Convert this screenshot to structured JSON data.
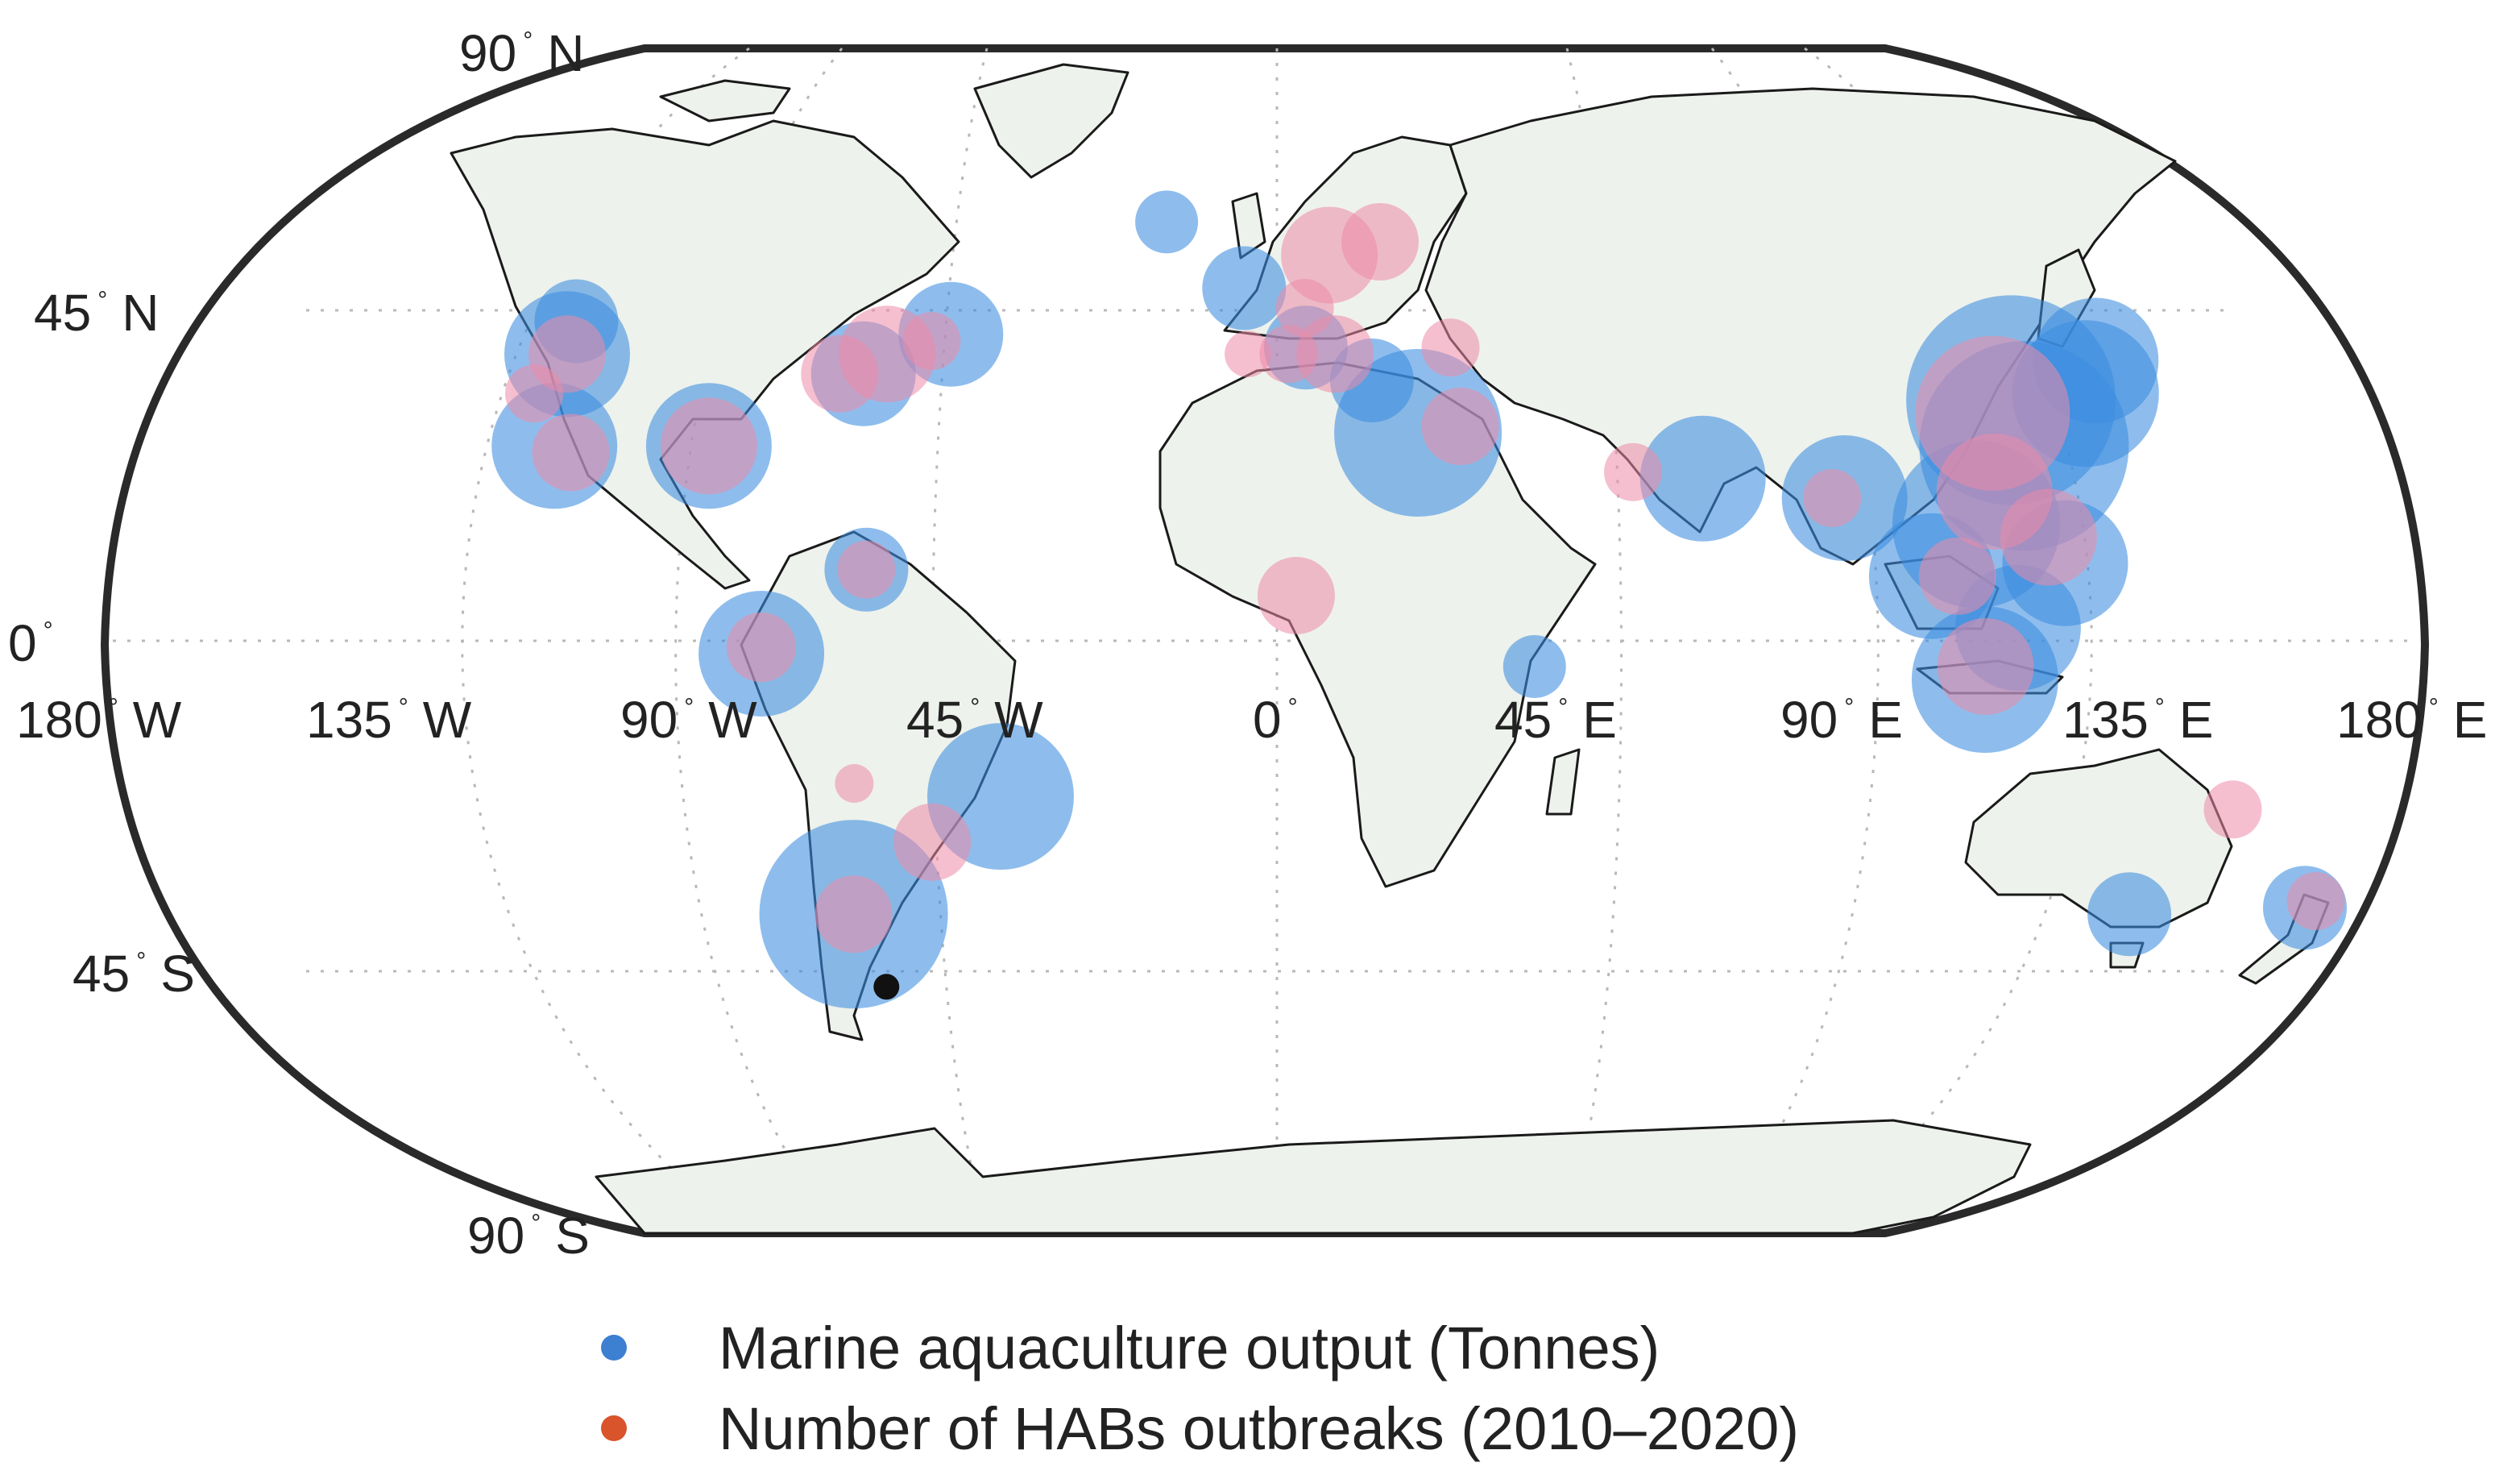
{
  "map": {
    "projection": "Robinson",
    "gridlines": true,
    "lat_labels": [
      {
        "deg": "90",
        "hemi": "N"
      },
      {
        "deg": "45",
        "hemi": "N"
      },
      {
        "deg": "0",
        "hemi": ""
      },
      {
        "deg": "45",
        "hemi": "S"
      },
      {
        "deg": "90",
        "hemi": "S"
      }
    ],
    "lon_labels": [
      {
        "deg": "180",
        "hemi": "W"
      },
      {
        "deg": "135",
        "hemi": "W"
      },
      {
        "deg": "90",
        "hemi": "W"
      },
      {
        "deg": "45",
        "hemi": "W"
      },
      {
        "deg": "0",
        "hemi": ""
      },
      {
        "deg": "45",
        "hemi": "E"
      },
      {
        "deg": "90",
        "hemi": "E"
      },
      {
        "deg": "135",
        "hemi": "E"
      },
      {
        "deg": "180",
        "hemi": "E"
      }
    ],
    "degree_symbol": "°"
  },
  "legend": {
    "items": [
      {
        "label": "Marine aquaculture output (Tonnes)",
        "color": "#3d7fd0"
      },
      {
        "label": "Number of HABs outbreaks (2010–2020)",
        "color": "#d9532b"
      }
    ]
  },
  "colors": {
    "land": "#eef2ec",
    "coast": "#1a1a1a",
    "aquaculture_bubble": "#3d8ee0",
    "habs_bubble": "#ec8aa8",
    "marker": "#111111"
  },
  "chart_data": {
    "type": "scatter",
    "note_units": "lon/lat in degrees; sizes relative (1-5)",
    "series": [
      {
        "name": "Marine aquaculture output (Tonnes)",
        "points": [
          {
            "lon": -124,
            "lat": 49,
            "size": 2
          },
          {
            "lon": -122,
            "lat": 44,
            "size": 3
          },
          {
            "lon": -117,
            "lat": 30,
            "size": 3
          },
          {
            "lon": -92,
            "lat": 30,
            "size": 3
          },
          {
            "lon": -70,
            "lat": 41,
            "size": 2.5
          },
          {
            "lon": -57,
            "lat": 47,
            "size": 2.5
          },
          {
            "lon": -22,
            "lat": 64,
            "size": 1.5
          },
          {
            "lon": -6,
            "lat": 54,
            "size": 2
          },
          {
            "lon": 5,
            "lat": 45,
            "size": 2
          },
          {
            "lon": 16,
            "lat": 40,
            "size": 2
          },
          {
            "lon": 23,
            "lat": 32,
            "size": 4
          },
          {
            "lon": -64,
            "lat": 11,
            "size": 2
          },
          {
            "lon": -80,
            "lat": -2,
            "size": 3
          },
          {
            "lon": -44,
            "lat": -24,
            "size": 3.5
          },
          {
            "lon": -72,
            "lat": -42,
            "size": 4.5
          },
          {
            "lon": 40,
            "lat": -4,
            "size": 1.5
          },
          {
            "lon": 68,
            "lat": 25,
            "size": 3
          },
          {
            "lon": 90,
            "lat": 22,
            "size": 3
          },
          {
            "lon": 102,
            "lat": 10,
            "size": 3
          },
          {
            "lon": 110,
            "lat": 18,
            "size": 4
          },
          {
            "lon": 121,
            "lat": 30,
            "size": 5
          },
          {
            "lon": 122,
            "lat": 37,
            "size": 5
          },
          {
            "lon": 135,
            "lat": 38,
            "size": 3.5
          },
          {
            "lon": 140,
            "lat": 43,
            "size": 3
          },
          {
            "lon": 123,
            "lat": 12,
            "size": 3
          },
          {
            "lon": 115,
            "lat": 2,
            "size": 3
          },
          {
            "lon": 110,
            "lat": -6,
            "size": 3.5
          },
          {
            "lon": 145,
            "lat": -42,
            "size": 2
          },
          {
            "lon": 174,
            "lat": -41,
            "size": 2
          }
        ]
      },
      {
        "name": "Number of HABs outbreaks (2010–2020)",
        "points": [
          {
            "lon": -122,
            "lat": 44,
            "size": 2
          },
          {
            "lon": -124,
            "lat": 38,
            "size": 1.5
          },
          {
            "lon": -114,
            "lat": 29,
            "size": 2
          },
          {
            "lon": -92,
            "lat": 30,
            "size": 2.5
          },
          {
            "lon": -74,
            "lat": 41,
            "size": 2
          },
          {
            "lon": -67,
            "lat": 44,
            "size": 2.5
          },
          {
            "lon": -60,
            "lat": 46,
            "size": 1.5
          },
          {
            "lon": 10,
            "lat": 59,
            "size": 2.5
          },
          {
            "lon": 20,
            "lat": 61,
            "size": 2
          },
          {
            "lon": 5,
            "lat": 51,
            "size": 1.5
          },
          {
            "lon": -5,
            "lat": 44,
            "size": 1.2
          },
          {
            "lon": 2,
            "lat": 44,
            "size": 1.5
          },
          {
            "lon": 10,
            "lat": 44,
            "size": 2
          },
          {
            "lon": 30,
            "lat": 45,
            "size": 1.5
          },
          {
            "lon": 30,
            "lat": 33,
            "size": 2
          },
          {
            "lon": 57,
            "lat": 26,
            "size": 1.5
          },
          {
            "lon": 3,
            "lat": 7,
            "size": 2
          },
          {
            "lon": -64,
            "lat": 11,
            "size": 1.5
          },
          {
            "lon": -80,
            "lat": -1,
            "size": 1.8
          },
          {
            "lon": -67,
            "lat": -22,
            "size": 1
          },
          {
            "lon": -56,
            "lat": -31,
            "size": 2
          },
          {
            "lon": -72,
            "lat": -42,
            "size": 2
          },
          {
            "lon": 88,
            "lat": 22,
            "size": 1.5
          },
          {
            "lon": 118,
            "lat": 35,
            "size": 4
          },
          {
            "lon": 114,
            "lat": 23,
            "size": 3
          },
          {
            "lon": 121,
            "lat": 16,
            "size": 2.5
          },
          {
            "lon": 106,
            "lat": 10,
            "size": 2
          },
          {
            "lon": 110,
            "lat": -4,
            "size": 2.5
          },
          {
            "lon": 153,
            "lat": -26,
            "size": 1.5
          },
          {
            "lon": 175,
            "lat": -40,
            "size": 1.5
          }
        ]
      }
    ],
    "marker_point": {
      "lon": -71,
      "lat": -53
    }
  }
}
